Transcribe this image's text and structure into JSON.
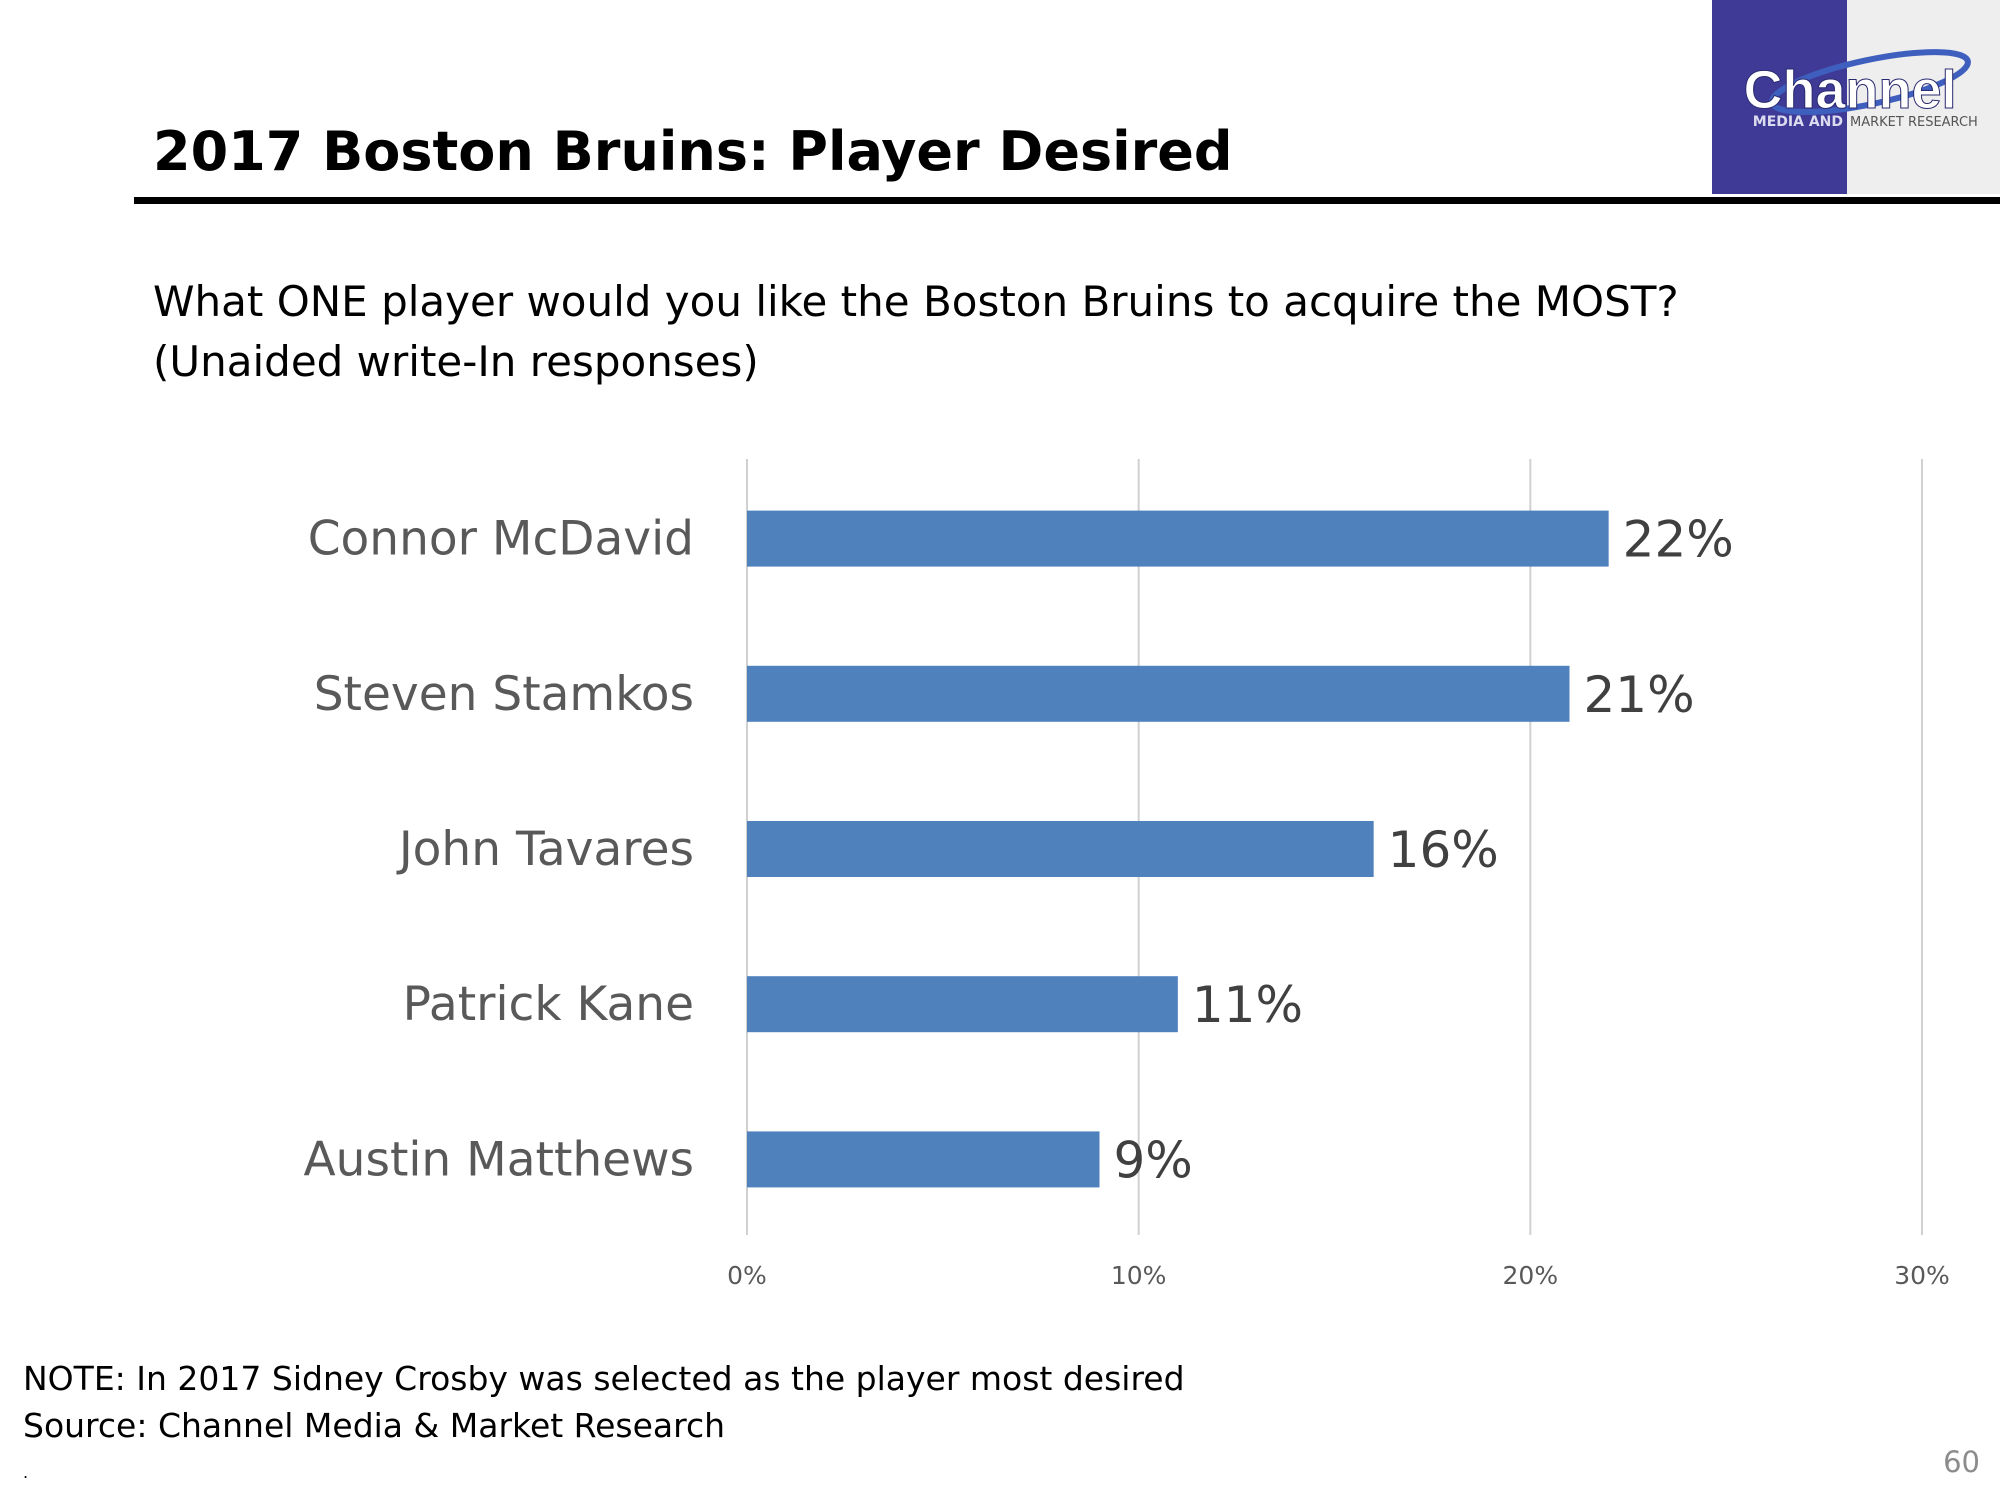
{
  "header": {
    "title": "2017 Boston Bruins: Player Desired",
    "logo": {
      "name": "Channel",
      "tagline_left": "MEDIA AND",
      "tagline_right": "MARKET RESEARCH"
    }
  },
  "question": [
    "What ONE player would you like the Boston Bruins to acquire the MOST?",
    "(Unaided write-In responses)"
  ],
  "chart_data": {
    "type": "bar",
    "orientation": "horizontal",
    "categories": [
      "Connor McDavid",
      "Steven Stamkos",
      "John Tavares",
      "Patrick Kane",
      "Austin Matthews"
    ],
    "values": [
      22,
      21,
      16,
      11,
      9
    ],
    "value_labels": [
      "22%",
      "21%",
      "16%",
      "11%",
      "9%"
    ],
    "color": "#4f81bd",
    "xlim": [
      0,
      30
    ],
    "xticks": [
      {
        "value": 0,
        "label": "0%"
      },
      {
        "value": 10,
        "label": "10%"
      },
      {
        "value": 20,
        "label": "20%"
      },
      {
        "value": 30,
        "label": "30%"
      }
    ],
    "grid": true
  },
  "footer": {
    "note": "NOTE: In 2017 Sidney Crosby was selected as the player most desired",
    "source": "Source: Channel Media & Market Research",
    "mark": ".",
    "page": "60"
  }
}
